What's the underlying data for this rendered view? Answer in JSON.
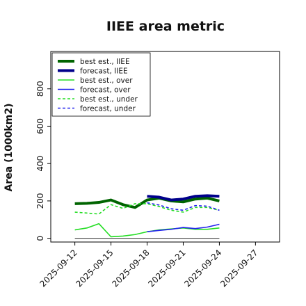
{
  "chart_data": {
    "type": "line",
    "title": "IIEE area metric",
    "xlabel": "",
    "ylabel": "Area (1000km2)",
    "ylim": [
      -20,
      1000
    ],
    "xlim": [
      "2025-09-10",
      "2025-09-29"
    ],
    "yticks": [
      0,
      200,
      400,
      600,
      800
    ],
    "xticks": [
      "2025-09-12",
      "2025-09-15",
      "2025-09-18",
      "2025-09-21",
      "2025-09-24",
      "2025-09-27"
    ],
    "highlighted_xtick": "2025-09-18",
    "highlight_color": "#2e8b2e",
    "grid": false,
    "legend_position": "upper-left",
    "baseline": {
      "x": [
        "2025-09-12",
        "2025-09-24"
      ],
      "y": [
        0,
        0
      ],
      "color": "#555555"
    },
    "series": [
      {
        "name": "best est., IIEE",
        "color": "#006400",
        "style": "solid",
        "width": 4,
        "x": [
          "2025-09-12",
          "2025-09-13",
          "2025-09-14",
          "2025-09-15",
          "2025-09-16",
          "2025-09-17",
          "2025-09-18",
          "2025-09-19",
          "2025-09-20",
          "2025-09-21",
          "2025-09-22",
          "2025-09-23",
          "2025-09-24"
        ],
        "y": [
          185,
          187,
          192,
          205,
          180,
          165,
          205,
          215,
          200,
          195,
          210,
          215,
          200
        ]
      },
      {
        "name": "forecast, IIEE",
        "color": "#00008b",
        "style": "solid",
        "width": 4,
        "x": [
          "2025-09-18",
          "2025-09-19",
          "2025-09-20",
          "2025-09-21",
          "2025-09-22",
          "2025-09-23",
          "2025-09-24"
        ],
        "y": [
          225,
          220,
          205,
          210,
          225,
          228,
          225
        ]
      },
      {
        "name": "best est., over",
        "color": "#22dd22",
        "style": "solid",
        "width": 1.6,
        "x": [
          "2025-09-12",
          "2025-09-13",
          "2025-09-14",
          "2025-09-15",
          "2025-09-16",
          "2025-09-17",
          "2025-09-18",
          "2025-09-19",
          "2025-09-20",
          "2025-09-21",
          "2025-09-22",
          "2025-09-23",
          "2025-09-24"
        ],
        "y": [
          45,
          55,
          78,
          8,
          12,
          20,
          35,
          45,
          50,
          55,
          48,
          48,
          55
        ]
      },
      {
        "name": "forecast, over",
        "color": "#2222ee",
        "style": "solid",
        "width": 1.6,
        "x": [
          "2025-09-18",
          "2025-09-19",
          "2025-09-20",
          "2025-09-21",
          "2025-09-22",
          "2025-09-23",
          "2025-09-24"
        ],
        "y": [
          35,
          42,
          48,
          58,
          52,
          60,
          75
        ]
      },
      {
        "name": "best est., under",
        "color": "#22dd22",
        "style": "dashed",
        "width": 1.6,
        "x": [
          "2025-09-12",
          "2025-09-13",
          "2025-09-14",
          "2025-09-15",
          "2025-09-16",
          "2025-09-17",
          "2025-09-18",
          "2025-09-19",
          "2025-09-20",
          "2025-09-21",
          "2025-09-22",
          "2025-09-23",
          "2025-09-24"
        ],
        "y": [
          140,
          135,
          130,
          180,
          160,
          185,
          185,
          170,
          150,
          140,
          165,
          165,
          150
        ]
      },
      {
        "name": "forecast, under",
        "color": "#2222ee",
        "style": "dashed",
        "width": 1.6,
        "x": [
          "2025-09-18",
          "2025-09-19",
          "2025-09-20",
          "2025-09-21",
          "2025-09-22",
          "2025-09-23",
          "2025-09-24"
        ],
        "y": [
          190,
          178,
          158,
          150,
          175,
          172,
          150
        ]
      }
    ]
  }
}
